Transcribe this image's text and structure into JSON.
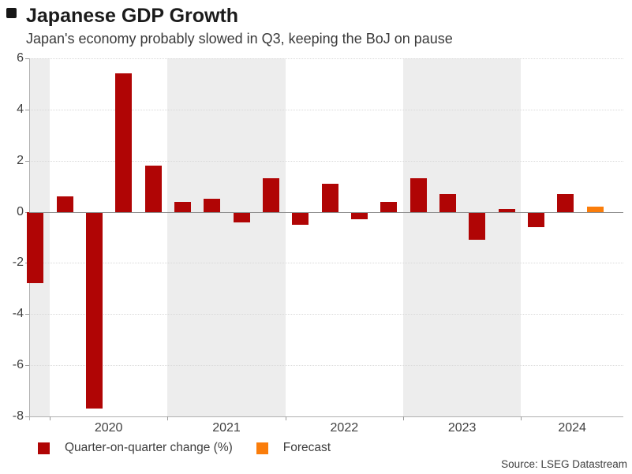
{
  "header": {
    "title": "Japanese GDP Growth",
    "subtitle": "Japan's economy probably slowed in Q3, keeping the BoJ on pause"
  },
  "colors": {
    "bar": "#b00505",
    "forecast": "#fa7d0b",
    "band": "#ededed",
    "grid": "#d9d9d9",
    "zero_line": "#8c8c8c",
    "axis": "#b0b0b0",
    "tick": "#9a9a9a",
    "text": "#3f3f3f",
    "title_text": "#1b1b1b"
  },
  "chart_data": {
    "type": "bar",
    "title": "Japanese GDP Growth",
    "subtitle": "Japan's economy probably slowed in Q3, keeping the BoJ on pause",
    "xlabel": "",
    "ylabel": "",
    "ylim": [
      -8,
      6
    ],
    "yticks": [
      6,
      4,
      2,
      0,
      -2,
      -4,
      -6,
      -8
    ],
    "grid": "horizontal-dotted",
    "background_bands": "alternating gray/white per calendar year",
    "x_axis_labels": [
      "2020",
      "2021",
      "2022",
      "2023",
      "2024"
    ],
    "year_bands": [
      {
        "year": "2019",
        "shaded": true
      },
      {
        "year": "2020",
        "shaded": false
      },
      {
        "year": "2021",
        "shaded": true
      },
      {
        "year": "2022",
        "shaded": false
      },
      {
        "year": "2023",
        "shaded": true
      },
      {
        "year": "2024",
        "shaded": false
      }
    ],
    "series_meta": [
      {
        "name": "Quarter-on-quarter change (%)",
        "color_key": "bar"
      },
      {
        "name": "Forecast",
        "color_key": "forecast"
      }
    ],
    "points": [
      {
        "quarter": "2019 Q4",
        "value": -2.8,
        "forecast": false
      },
      {
        "quarter": "2020 Q1",
        "value": 0.6,
        "forecast": false
      },
      {
        "quarter": "2020 Q2",
        "value": -7.7,
        "forecast": false
      },
      {
        "quarter": "2020 Q3",
        "value": 5.4,
        "forecast": false
      },
      {
        "quarter": "2020 Q4",
        "value": 1.8,
        "forecast": false
      },
      {
        "quarter": "2021 Q1",
        "value": 0.4,
        "forecast": false
      },
      {
        "quarter": "2021 Q2",
        "value": 0.5,
        "forecast": false
      },
      {
        "quarter": "2021 Q3",
        "value": -0.4,
        "forecast": false
      },
      {
        "quarter": "2021 Q4",
        "value": 1.3,
        "forecast": false
      },
      {
        "quarter": "2022 Q1",
        "value": -0.5,
        "forecast": false
      },
      {
        "quarter": "2022 Q2",
        "value": 1.1,
        "forecast": false
      },
      {
        "quarter": "2022 Q3",
        "value": -0.3,
        "forecast": false
      },
      {
        "quarter": "2022 Q4",
        "value": 0.4,
        "forecast": false
      },
      {
        "quarter": "2023 Q1",
        "value": 1.3,
        "forecast": false
      },
      {
        "quarter": "2023 Q2",
        "value": 0.7,
        "forecast": false
      },
      {
        "quarter": "2023 Q3",
        "value": -1.1,
        "forecast": false
      },
      {
        "quarter": "2023 Q4",
        "value": 0.1,
        "forecast": false
      },
      {
        "quarter": "2024 Q1",
        "value": -0.6,
        "forecast": false
      },
      {
        "quarter": "2024 Q2",
        "value": 0.7,
        "forecast": false
      },
      {
        "quarter": "2024 Q3",
        "value": 0.2,
        "forecast": true
      }
    ],
    "legend_position": "bottom-left"
  },
  "legend": {
    "items": [
      {
        "label": "Quarter-on-quarter change (%)"
      },
      {
        "label": "Forecast"
      }
    ]
  },
  "footer": {
    "source": "Source: LSEG Datastream"
  }
}
